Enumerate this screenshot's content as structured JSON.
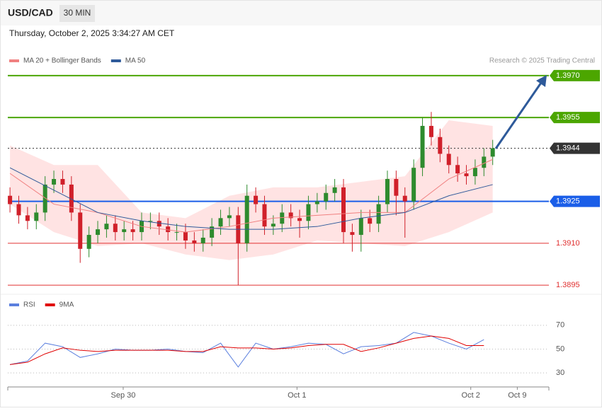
{
  "header": {
    "symbol": "USD/CAD",
    "interval": "30 MIN",
    "timestamp": "Thursday, October 2, 2025 3:34:27 AM CET"
  },
  "chart_data": [
    {
      "type": "candlestick",
      "credit": "Research © 2025 Trading Central",
      "up_color": "#2e8b2e",
      "down_color": "#d0202a",
      "open": [
        1.3927,
        1.3924,
        1.392,
        1.3918,
        1.3921,
        1.3931,
        1.3933,
        1.3931,
        1.3921,
        1.3908,
        1.3913,
        1.3915,
        1.3917,
        1.3914,
        1.3915,
        1.3914,
        1.3918,
        1.3918,
        1.3916,
        1.3914,
        1.3914,
        1.3911,
        1.391,
        1.3912,
        1.3916,
        1.3919,
        1.392,
        1.391,
        1.3927,
        1.3924,
        1.3916,
        1.3917,
        1.3921,
        1.3919,
        1.3918,
        1.3924,
        1.3925,
        1.3928,
        1.393,
        1.3914,
        1.3913,
        1.3919,
        1.3917,
        1.3924,
        1.3933,
        1.3927,
        1.3925,
        1.3937,
        1.3952,
        1.3948,
        1.3942,
        1.3938,
        1.3935,
        1.3934,
        1.3937,
        1.3941
      ],
      "high": [
        1.393,
        1.3927,
        1.3923,
        1.3924,
        1.3934,
        1.3936,
        1.3936,
        1.3934,
        1.3924,
        1.3916,
        1.3918,
        1.392,
        1.392,
        1.3918,
        1.3918,
        1.3921,
        1.3921,
        1.3921,
        1.3919,
        1.3917,
        1.3917,
        1.3914,
        1.3915,
        1.3919,
        1.3922,
        1.3923,
        1.3923,
        1.3931,
        1.393,
        1.3927,
        1.392,
        1.3924,
        1.3924,
        1.3922,
        1.3927,
        1.3928,
        1.3931,
        1.3933,
        1.3933,
        1.3917,
        1.3922,
        1.3922,
        1.3927,
        1.3936,
        1.3936,
        1.393,
        1.394,
        1.3955,
        1.3957,
        1.3951,
        1.3945,
        1.3941,
        1.3938,
        1.394,
        1.3944,
        1.3947
      ],
      "low": [
        1.3921,
        1.3917,
        1.3915,
        1.3915,
        1.3918,
        1.3928,
        1.3928,
        1.3918,
        1.3903,
        1.3905,
        1.391,
        1.3912,
        1.3911,
        1.3911,
        1.3911,
        1.3911,
        1.3915,
        1.3913,
        1.3911,
        1.3911,
        1.3908,
        1.3907,
        1.3907,
        1.3909,
        1.3913,
        1.3916,
        1.3895,
        1.3907,
        1.3921,
        1.3913,
        1.3913,
        1.3914,
        1.3916,
        1.3912,
        1.3915,
        1.3921,
        1.3922,
        1.3925,
        1.391,
        1.3907,
        1.3907,
        1.3914,
        1.3914,
        1.3921,
        1.392,
        1.3912,
        1.3922,
        1.3934,
        1.3945,
        1.3939,
        1.3935,
        1.3932,
        1.3931,
        1.3931,
        1.3934,
        1.3938
      ],
      "close": [
        1.3924,
        1.392,
        1.3918,
        1.3921,
        1.3931,
        1.3933,
        1.3931,
        1.3921,
        1.3908,
        1.3913,
        1.3915,
        1.3917,
        1.3914,
        1.3915,
        1.3914,
        1.3918,
        1.3918,
        1.3916,
        1.3914,
        1.3914,
        1.3911,
        1.391,
        1.3912,
        1.3916,
        1.3919,
        1.392,
        1.391,
        1.3927,
        1.3924,
        1.3916,
        1.3917,
        1.3921,
        1.3919,
        1.3918,
        1.3924,
        1.3925,
        1.3928,
        1.393,
        1.3914,
        1.3913,
        1.3919,
        1.3917,
        1.3924,
        1.3933,
        1.3927,
        1.3925,
        1.3937,
        1.3952,
        1.3948,
        1.3942,
        1.3938,
        1.3935,
        1.3934,
        1.3937,
        1.3941,
        1.3944
      ],
      "series": [
        {
          "name": "MA 20 + Bollinger Bands",
          "color": "#f08080",
          "band_color": "#ffe3e3",
          "x": [
            0,
            5,
            10,
            15,
            20,
            25,
            30,
            35,
            40,
            45,
            50,
            55
          ],
          "values": [
            1.3935,
            1.3924,
            1.3921,
            1.3916,
            1.3914,
            1.3916,
            1.3919,
            1.392,
            1.3921,
            1.3921,
            1.3933,
            1.394
          ],
          "upper": [
            1.3945,
            1.3938,
            1.3938,
            1.3921,
            1.3919,
            1.3927,
            1.393,
            1.393,
            1.3932,
            1.3934,
            1.3954,
            1.3952
          ],
          "lower": [
            1.3924,
            1.3914,
            1.3909,
            1.391,
            1.3906,
            1.3904,
            1.3906,
            1.3911,
            1.391,
            1.3909,
            1.3914,
            1.3921
          ]
        },
        {
          "name": "MA 50",
          "color": "#2e5a9a",
          "x": [
            0,
            5,
            10,
            15,
            20,
            25,
            30,
            35,
            40,
            45,
            50,
            55
          ],
          "values": [
            1.3937,
            1.3929,
            1.3921,
            1.3918,
            1.3916,
            1.3915,
            1.3915,
            1.3916,
            1.3919,
            1.3921,
            1.3927,
            1.3931
          ]
        }
      ],
      "levels": [
        {
          "value": 1.397,
          "label": "1.3970",
          "color": "#4ca600",
          "label_box": true,
          "dashed": false
        },
        {
          "value": 1.3955,
          "label": "1.3955",
          "color": "#4ca600",
          "label_box": true,
          "dashed": false
        },
        {
          "value": 1.3944,
          "label": "1.3944",
          "color": "#333333",
          "label_box": true,
          "dashed": true
        },
        {
          "value": 1.3925,
          "label": "1.3925",
          "color": "#1a5ee8",
          "label_box": true,
          "dashed": false
        },
        {
          "value": 1.391,
          "label": "1.3910",
          "color": "#e03030",
          "label_box": false,
          "dashed": false
        },
        {
          "value": 1.3895,
          "label": "1.3895",
          "color": "#e03030",
          "label_box": false,
          "dashed": false
        }
      ],
      "xlim": [
        -0.25,
        61.4
      ],
      "ylim": [
        1.3892,
        1.3973
      ]
    },
    {
      "type": "line",
      "x": [
        0,
        2,
        4,
        6,
        8,
        10,
        12,
        14,
        16,
        18,
        20,
        22,
        24,
        26,
        28,
        30,
        32,
        34,
        36,
        38,
        40,
        42,
        44,
        46,
        48,
        50,
        52,
        54
      ],
      "series": [
        {
          "name": "RSI",
          "color": "#5b7fde",
          "values": [
            37,
            40,
            55,
            52,
            43,
            46,
            50,
            49,
            49,
            50,
            48,
            47,
            55,
            35,
            55,
            50,
            52,
            55,
            54,
            46,
            52,
            53,
            55,
            64,
            61,
            55,
            50,
            58
          ]
        },
        {
          "name": "9MA",
          "color": "#e00000",
          "values": [
            37,
            39,
            46,
            51,
            49,
            48,
            49,
            49,
            49,
            49,
            48,
            48,
            52,
            51,
            51,
            50,
            51,
            53,
            54,
            54,
            48,
            51,
            55,
            59,
            61,
            59,
            53,
            53
          ]
        }
      ],
      "xlim": [
        -0.25,
        61.4
      ],
      "ylim": [
        20,
        80
      ],
      "yticks": [
        30,
        50,
        70
      ],
      "xticks": [
        {
          "value": 12.9,
          "label": "Sep 30"
        },
        {
          "value": 32.7,
          "label": "Oct 1"
        },
        {
          "value": 52.5,
          "label": "Oct 2"
        },
        {
          "value": 57.8,
          "label": "Oct 9"
        }
      ]
    }
  ]
}
